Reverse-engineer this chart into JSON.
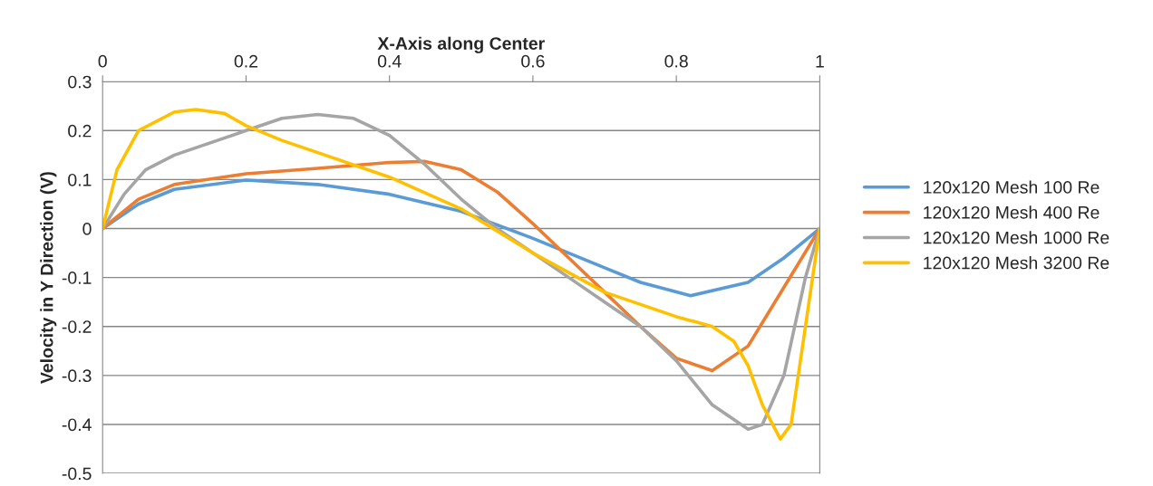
{
  "chart_data": {
    "type": "line",
    "xlabel": "X-Axis along Center",
    "ylabel": "Velocity in Y Direction (V)",
    "xlim": [
      0,
      1
    ],
    "xticks": [
      0,
      0.2,
      0.4,
      0.6,
      0.8,
      1
    ],
    "ylim": [
      -0.5,
      0.3
    ],
    "yticks": [
      -0.5,
      -0.4,
      -0.3,
      -0.2,
      -0.1,
      0,
      0.1,
      0.2,
      0.3
    ],
    "grid": "y",
    "legend": "right",
    "marker": "none",
    "line_style": "solid",
    "series": [
      {
        "name": "120x120 Mesh 100 Re",
        "color": "#5b9bd5",
        "x": [
          0,
          0.05,
          0.1,
          0.2,
          0.3,
          0.4,
          0.5,
          0.6,
          0.7,
          0.75,
          0.82,
          0.9,
          0.95,
          1
        ],
        "values": [
          0,
          0.05,
          0.08,
          0.099,
          0.09,
          0.07,
          0.035,
          -0.02,
          -0.08,
          -0.11,
          -0.137,
          -0.11,
          -0.06,
          0
        ]
      },
      {
        "name": "120x120 Mesh 400 Re",
        "color": "#ed7d31",
        "x": [
          0,
          0.05,
          0.1,
          0.2,
          0.3,
          0.4,
          0.45,
          0.5,
          0.55,
          0.6,
          0.65,
          0.7,
          0.75,
          0.8,
          0.85,
          0.9,
          0.95,
          1
        ],
        "values": [
          0,
          0.06,
          0.09,
          0.112,
          0.123,
          0.135,
          0.137,
          0.12,
          0.075,
          0.01,
          -0.06,
          -0.13,
          -0.2,
          -0.265,
          -0.29,
          -0.24,
          -0.12,
          0
        ]
      },
      {
        "name": "120x120 Mesh 1000 Re",
        "color": "#a5a5a5",
        "x": [
          0,
          0.03,
          0.06,
          0.1,
          0.2,
          0.25,
          0.3,
          0.35,
          0.4,
          0.45,
          0.5,
          0.55,
          0.6,
          0.65,
          0.7,
          0.75,
          0.8,
          0.85,
          0.9,
          0.92,
          0.95,
          0.98,
          1
        ],
        "values": [
          0,
          0.07,
          0.12,
          0.15,
          0.2,
          0.225,
          0.233,
          0.225,
          0.19,
          0.13,
          0.06,
          0.0,
          -0.05,
          -0.1,
          -0.15,
          -0.2,
          -0.27,
          -0.36,
          -0.41,
          -0.4,
          -0.3,
          -0.1,
          0
        ]
      },
      {
        "name": "120x120 Mesh 3200 Re",
        "color": "#ffc000",
        "x": [
          0,
          0.02,
          0.05,
          0.1,
          0.13,
          0.17,
          0.2,
          0.25,
          0.3,
          0.4,
          0.5,
          0.6,
          0.7,
          0.8,
          0.85,
          0.88,
          0.9,
          0.92,
          0.945,
          0.96,
          0.98,
          1
        ],
        "values": [
          0,
          0.12,
          0.2,
          0.238,
          0.243,
          0.235,
          0.21,
          0.18,
          0.155,
          0.105,
          0.04,
          -0.05,
          -0.13,
          -0.18,
          -0.2,
          -0.23,
          -0.28,
          -0.36,
          -0.43,
          -0.4,
          -0.2,
          0
        ]
      }
    ]
  }
}
